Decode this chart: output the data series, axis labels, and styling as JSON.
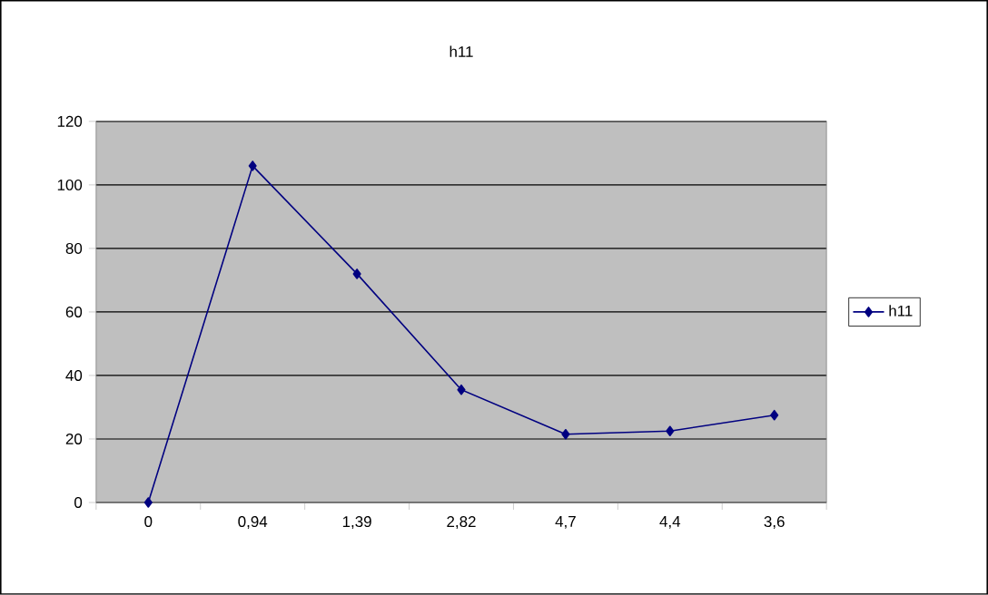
{
  "chart_data": {
    "type": "line",
    "title": "h11",
    "categories": [
      "0",
      "0,94",
      "1,39",
      "2,82",
      "4,7",
      "4,4",
      "3,6"
    ],
    "series": [
      {
        "name": "h11",
        "color": "#000080",
        "values": [
          0,
          106,
          72,
          35.5,
          21.5,
          22.5,
          27.5
        ]
      }
    ],
    "ylim": [
      0,
      120
    ],
    "yticks": [
      0,
      20,
      40,
      60,
      80,
      100,
      120
    ],
    "grid": "y",
    "legend": "right",
    "marker": "diamond",
    "line_style": "solid"
  }
}
